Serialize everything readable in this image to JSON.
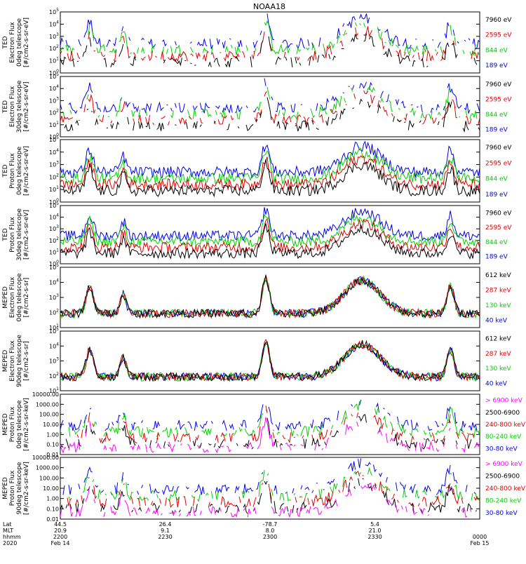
{
  "title": "NOAA18",
  "colors": {
    "black": "#000000",
    "red": "#e00000",
    "green": "#00d000",
    "blue": "#0000ee",
    "magenta": "#ff00ff",
    "frame": "#000000"
  },
  "chart_data": [
    {
      "type": "line",
      "scale": "log",
      "ylim": [
        1,
        100000
      ],
      "ylabel": [
        "TED",
        "Electron Flux",
        "0deg telescope",
        "[#/cm2-s-sr-eV]"
      ],
      "yticks": [
        "10^5",
        "10^4",
        "10^3",
        "10^2",
        "10^1",
        "10^0"
      ],
      "series": [
        {
          "name": "7960 eV",
          "color": "black",
          "style": "sparse"
        },
        {
          "name": "2595 eV",
          "color": "red",
          "style": "sparse"
        },
        {
          "name": "844 eV",
          "color": "green",
          "style": "sparse"
        },
        {
          "name": "189 eV",
          "color": "blue",
          "style": "sparse"
        }
      ]
    },
    {
      "type": "line",
      "scale": "log",
      "ylim": [
        1,
        100000
      ],
      "ylabel": [
        "TED",
        "Electron Flux",
        "30deg telescope",
        "[#/cm2-s-sr-eV]"
      ],
      "yticks": [
        "10^5",
        "10^4",
        "10^3",
        "10^2",
        "10^1",
        "10^0"
      ],
      "series": [
        {
          "name": "7960 eV",
          "color": "black",
          "style": "sparse"
        },
        {
          "name": "2595 eV",
          "color": "red",
          "style": "sparse"
        },
        {
          "name": "844 eV",
          "color": "green",
          "style": "sparse"
        },
        {
          "name": "189 eV",
          "color": "blue",
          "style": "sparse"
        }
      ]
    },
    {
      "type": "line",
      "scale": "log",
      "ylim": [
        1,
        100000
      ],
      "ylabel": [
        "TED",
        "Proton Flux",
        "0deg telescope",
        "[#/cm2-s-sr-eV]"
      ],
      "yticks": [
        "10^5",
        "10^4",
        "10^3",
        "10^2",
        "10^1",
        "10^0"
      ],
      "series": [
        {
          "name": "7960 eV",
          "color": "black",
          "style": "dense"
        },
        {
          "name": "2595 eV",
          "color": "red",
          "style": "dense"
        },
        {
          "name": "844 eV",
          "color": "green",
          "style": "dense"
        },
        {
          "name": "189 eV",
          "color": "blue",
          "style": "dense"
        }
      ]
    },
    {
      "type": "line",
      "scale": "log",
      "ylim": [
        1,
        100000
      ],
      "ylabel": [
        "TED",
        "Proton Flux",
        "30deg telescope",
        "[#/cm2-s-sr-eV]"
      ],
      "yticks": [
        "10^5",
        "10^4",
        "10^3",
        "10^2",
        "10^1",
        "10^0"
      ],
      "series": [
        {
          "name": "7960 eV",
          "color": "black",
          "style": "dense"
        },
        {
          "name": "2595 eV",
          "color": "red",
          "style": "dense"
        },
        {
          "name": "844 eV",
          "color": "green",
          "style": "dense"
        },
        {
          "name": "189 eV",
          "color": "blue",
          "style": "dense"
        }
      ]
    },
    {
      "type": "line",
      "scale": "log",
      "ylim": [
        10,
        100000
      ],
      "ylabel": [
        "MEPED",
        "Electron Flux",
        "0deg telescope",
        "[#/cm2-s-sr]"
      ],
      "yticks": [
        "10^5",
        "10^4",
        "10^3",
        "10^2",
        "10^1"
      ],
      "series": [
        {
          "name": "612 keV",
          "color": "black",
          "style": "meped"
        },
        {
          "name": "287 keV",
          "color": "red",
          "style": "meped"
        },
        {
          "name": "130 keV",
          "color": "green",
          "style": "meped"
        },
        {
          "name": "40 keV",
          "color": "blue",
          "style": "meped"
        }
      ]
    },
    {
      "type": "line",
      "scale": "log",
      "ylim": [
        10,
        100000
      ],
      "ylabel": [
        "MEPED",
        "Electron Flux",
        "90deg telescope",
        "[#/cm2-s-sr]"
      ],
      "yticks": [
        "10^5",
        "10^4",
        "10^3",
        "10^2",
        "10^1"
      ],
      "series": [
        {
          "name": "612 keV",
          "color": "black",
          "style": "meped"
        },
        {
          "name": "287 keV",
          "color": "red",
          "style": "meped"
        },
        {
          "name": "130 keV",
          "color": "green",
          "style": "meped"
        },
        {
          "name": "40 keV",
          "color": "blue",
          "style": "meped"
        }
      ]
    },
    {
      "type": "line",
      "scale": "log",
      "ylim": [
        0.01,
        10000
      ],
      "ylabel": [
        "MEPED",
        "Proton Flux",
        "0deg telescope",
        "[#/cm2-s-sr-keV]"
      ],
      "yticks": [
        "10000.00",
        "1000.00",
        "100.00",
        "10.00",
        "1.00",
        "0.10",
        "0.01"
      ],
      "series": [
        {
          "name": "> 6900 keV",
          "color": "magenta",
          "style": "proton"
        },
        {
          "name": "2500-6900",
          "color": "black",
          "style": "proton"
        },
        {
          "name": "240-800 keV",
          "color": "red",
          "style": "proton"
        },
        {
          "name": "80-240 keV",
          "color": "green",
          "style": "proton"
        },
        {
          "name": "30-80 keV",
          "color": "blue",
          "style": "proton"
        }
      ]
    },
    {
      "type": "line",
      "scale": "log",
      "ylim": [
        0.01,
        10000
      ],
      "ylabel": [
        "MEPED",
        "Proton Flux",
        "90deg telescope",
        "[#/cm2-s-sr-keV]"
      ],
      "yticks": [
        "10000.00",
        "1000.00",
        "100.00",
        "10.00",
        "1.00",
        "0.10",
        "0.01"
      ],
      "series": [
        {
          "name": "> 6900 keV",
          "color": "magenta",
          "style": "proton"
        },
        {
          "name": "2500-6900",
          "color": "black",
          "style": "proton"
        },
        {
          "name": "240-800 keV",
          "color": "red",
          "style": "proton"
        },
        {
          "name": "80-240 keV",
          "color": "green",
          "style": "proton"
        },
        {
          "name": "30-80 keV",
          "color": "blue",
          "style": "proton"
        }
      ]
    }
  ],
  "time_axis": {
    "row_labels": [
      "Lat",
      "MLT",
      "hhmm",
      "2020"
    ],
    "ticks": [
      {
        "t": 0.0,
        "values": [
          "44.5",
          "20.9",
          "2200",
          "Feb 14"
        ]
      },
      {
        "t": 0.25,
        "values": [
          "26.4",
          "9.1",
          "2230",
          ""
        ]
      },
      {
        "t": 0.5,
        "values": [
          "-78.7",
          "8.0",
          "2300",
          ""
        ]
      },
      {
        "t": 0.75,
        "values": [
          "5.4",
          "21.0",
          "2330",
          ""
        ]
      },
      {
        "t": 1.0,
        "values": [
          "",
          "",
          "0000",
          "Feb 15"
        ]
      }
    ]
  }
}
